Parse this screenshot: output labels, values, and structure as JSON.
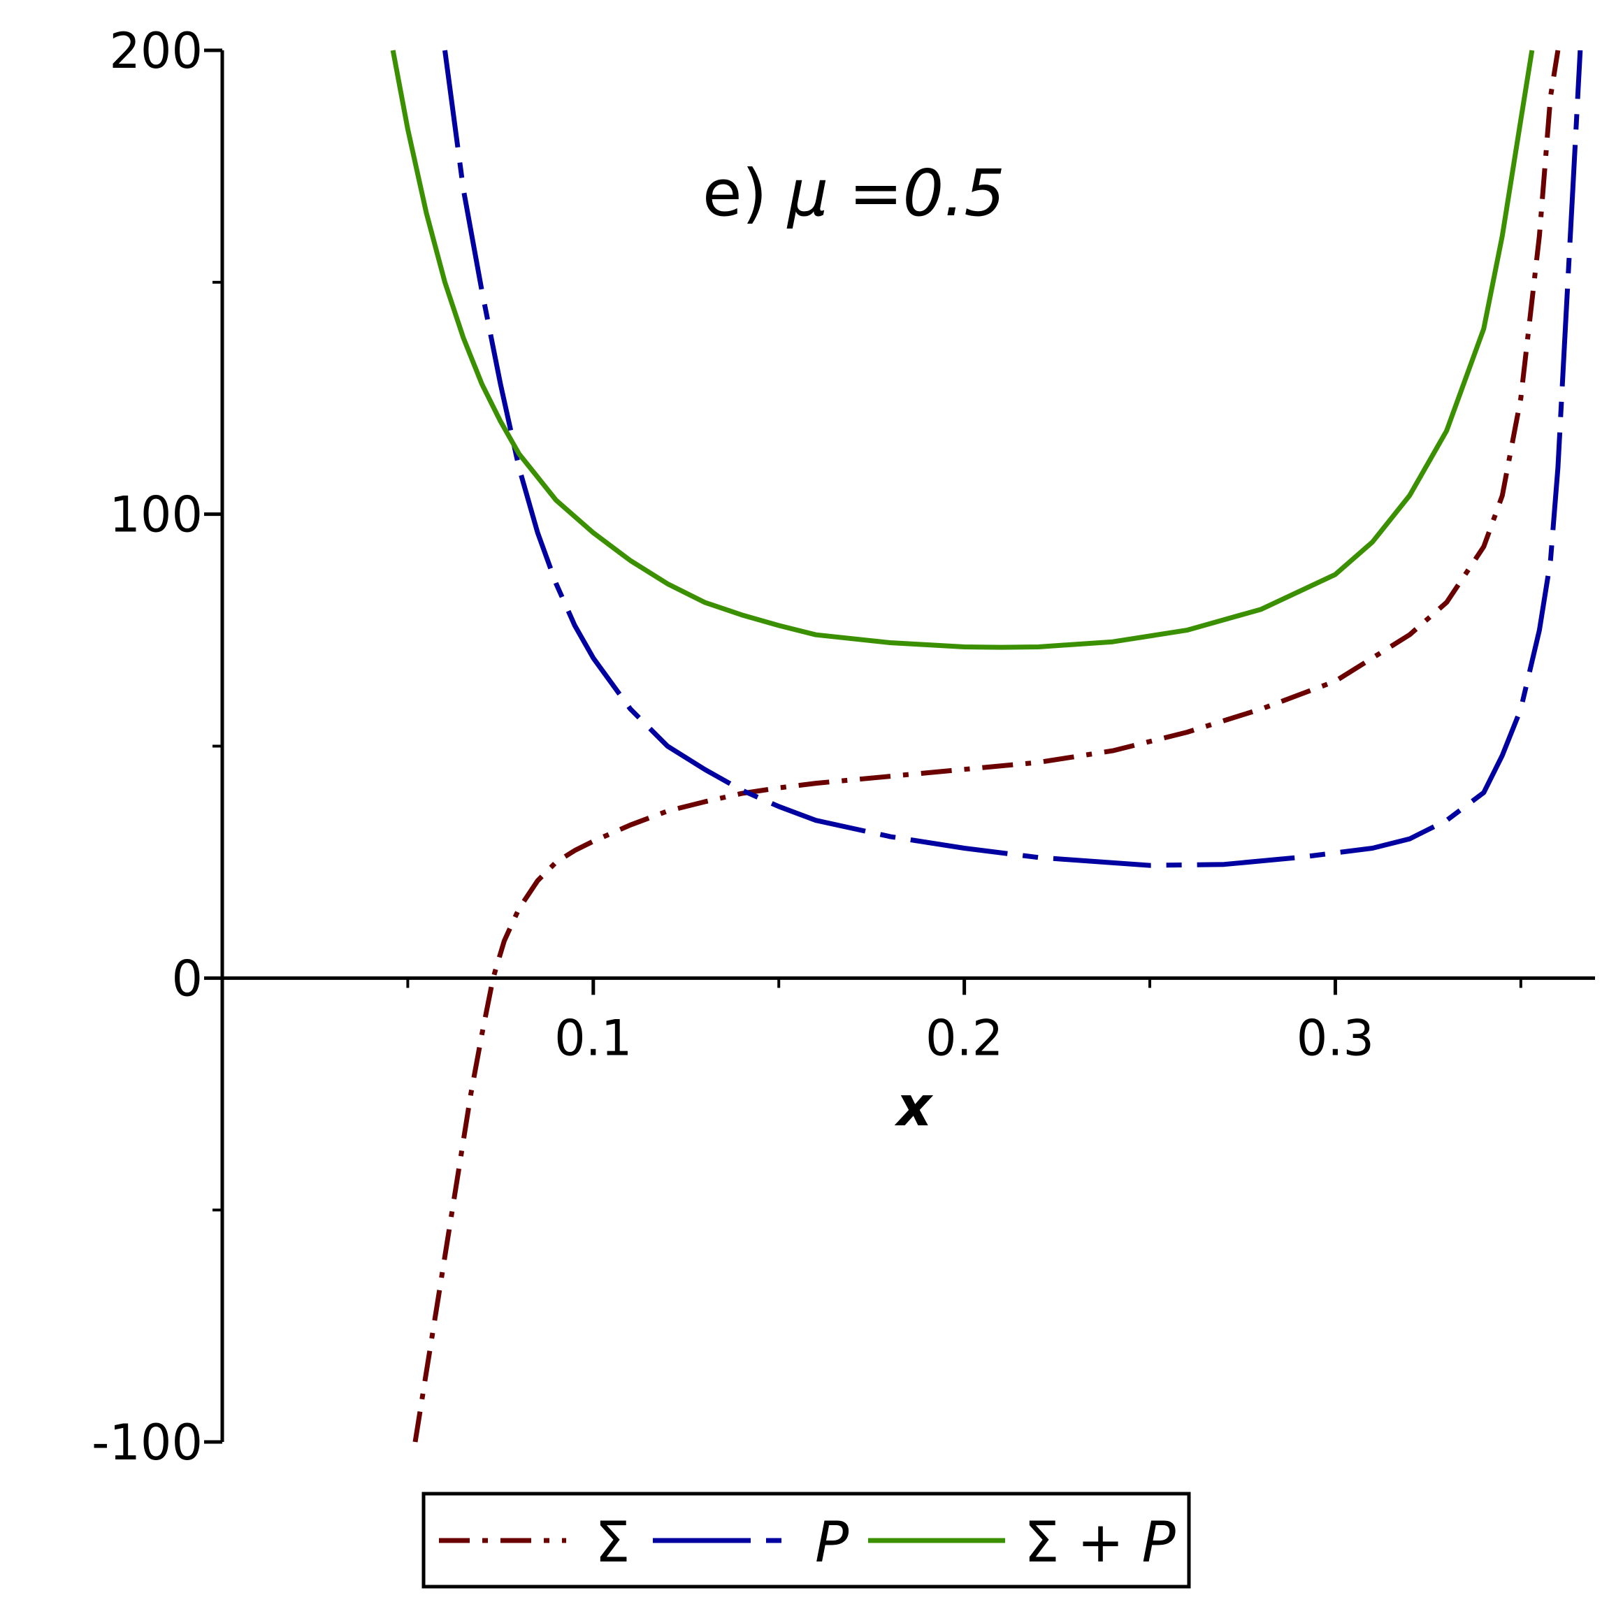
{
  "chart_data": {
    "type": "line",
    "xlabel": "x",
    "ylabel": "",
    "xlim": [
      0.0,
      0.37
    ],
    "ylim": [
      -100,
      200
    ],
    "x_ticks": [
      0.1,
      0.2,
      0.3
    ],
    "x_tick_labels": [
      "0.1",
      "0.2",
      "0.3"
    ],
    "x_minor_ticks": [
      0.05,
      0.15,
      0.25,
      0.35
    ],
    "y_ticks": [
      -100,
      0,
      100,
      200
    ],
    "y_tick_labels": [
      "-100",
      "0",
      "100",
      "200"
    ],
    "y_minor_ticks": [
      -50,
      50,
      150
    ],
    "annotation": {
      "prefix": "e) ",
      "symbol": "μ",
      "suffix": "=0.5"
    },
    "legend_position": "bottom",
    "grid": false,
    "series": [
      {
        "name": "Σ",
        "style": "dash-dot",
        "color": "#6b0000",
        "points": [
          [
            0.052,
            -100
          ],
          [
            0.055,
            -85
          ],
          [
            0.058,
            -70
          ],
          [
            0.061,
            -55
          ],
          [
            0.064,
            -40
          ],
          [
            0.067,
            -25
          ],
          [
            0.07,
            -12
          ],
          [
            0.073,
            0
          ],
          [
            0.076,
            8
          ],
          [
            0.08,
            15
          ],
          [
            0.085,
            21
          ],
          [
            0.09,
            25
          ],
          [
            0.095,
            27.5
          ],
          [
            0.1,
            29.5
          ],
          [
            0.11,
            33
          ],
          [
            0.12,
            36
          ],
          [
            0.13,
            38
          ],
          [
            0.14,
            39.8
          ],
          [
            0.15,
            41
          ],
          [
            0.16,
            42
          ],
          [
            0.18,
            43.5
          ],
          [
            0.2,
            45
          ],
          [
            0.22,
            46.5
          ],
          [
            0.24,
            49
          ],
          [
            0.26,
            53
          ],
          [
            0.28,
            58
          ],
          [
            0.3,
            64
          ],
          [
            0.32,
            74
          ],
          [
            0.33,
            81
          ],
          [
            0.34,
            93
          ],
          [
            0.345,
            104
          ],
          [
            0.35,
            125
          ],
          [
            0.355,
            160
          ],
          [
            0.358,
            190
          ],
          [
            0.36,
            200
          ]
        ]
      },
      {
        "name": "P",
        "style": "dash",
        "color": "#0000a0",
        "points": [
          [
            0.06,
            200
          ],
          [
            0.065,
            170
          ],
          [
            0.07,
            148
          ],
          [
            0.075,
            128
          ],
          [
            0.08,
            110
          ],
          [
            0.085,
            96
          ],
          [
            0.09,
            85
          ],
          [
            0.095,
            76
          ],
          [
            0.1,
            69
          ],
          [
            0.11,
            58
          ],
          [
            0.12,
            50
          ],
          [
            0.13,
            45
          ],
          [
            0.14,
            40.5
          ],
          [
            0.15,
            37
          ],
          [
            0.16,
            34
          ],
          [
            0.18,
            30.5
          ],
          [
            0.2,
            28
          ],
          [
            0.22,
            26
          ],
          [
            0.25,
            24.3
          ],
          [
            0.27,
            24.5
          ],
          [
            0.29,
            26
          ],
          [
            0.31,
            28
          ],
          [
            0.32,
            30
          ],
          [
            0.33,
            34
          ],
          [
            0.34,
            40
          ],
          [
            0.345,
            48
          ],
          [
            0.35,
            58
          ],
          [
            0.355,
            75
          ],
          [
            0.358,
            90
          ],
          [
            0.36,
            110
          ],
          [
            0.362,
            140
          ],
          [
            0.364,
            170
          ],
          [
            0.366,
            200
          ]
        ]
      },
      {
        "name": "Σ + P",
        "style": "solid",
        "color": "#3a9000",
        "points": [
          [
            0.046,
            200
          ],
          [
            0.05,
            183
          ],
          [
            0.055,
            165
          ],
          [
            0.06,
            150
          ],
          [
            0.065,
            138
          ],
          [
            0.07,
            128
          ],
          [
            0.075,
            120
          ],
          [
            0.08,
            113
          ],
          [
            0.09,
            103
          ],
          [
            0.1,
            96
          ],
          [
            0.11,
            90
          ],
          [
            0.12,
            85
          ],
          [
            0.13,
            81
          ],
          [
            0.14,
            78.3
          ],
          [
            0.15,
            76
          ],
          [
            0.16,
            74
          ],
          [
            0.18,
            72.3
          ],
          [
            0.2,
            71.4
          ],
          [
            0.21,
            71.3
          ],
          [
            0.22,
            71.4
          ],
          [
            0.24,
            72.5
          ],
          [
            0.26,
            75
          ],
          [
            0.28,
            79.5
          ],
          [
            0.3,
            87
          ],
          [
            0.31,
            94
          ],
          [
            0.32,
            104
          ],
          [
            0.33,
            118
          ],
          [
            0.34,
            140
          ],
          [
            0.345,
            160
          ],
          [
            0.35,
            185
          ],
          [
            0.353,
            200
          ]
        ]
      }
    ]
  },
  "legend": {
    "items": [
      {
        "label": "Σ",
        "italic": false
      },
      {
        "label": "P",
        "italic": true
      },
      {
        "label_prefix": "Σ + ",
        "label_suffix": "P"
      }
    ]
  }
}
